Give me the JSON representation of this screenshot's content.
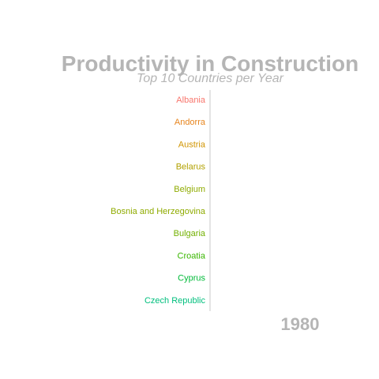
{
  "chart_data": {
    "type": "bar",
    "title": "Productivity in Construction",
    "subtitle": "Top 10 Countries per Year",
    "year": "1980",
    "categories": [
      "Albania",
      "Andorra",
      "Austria",
      "Belarus",
      "Belgium",
      "Bosnia and Herzegovina",
      "Bulgaria",
      "Croatia",
      "Cyprus",
      "Czech Republic"
    ],
    "values": [
      0,
      0,
      0,
      0,
      0,
      0,
      0,
      0,
      0,
      0
    ],
    "colors": [
      "#f8766d",
      "#e7851e",
      "#d09400",
      "#b2a100",
      "#8fab00",
      "#8fab00",
      "#72b000",
      "#39b600",
      "#00ba38",
      "#00bf7d"
    ],
    "axis_color": "#c8c8c8",
    "text_color": "#b5b5b5",
    "xlabel": "",
    "ylabel": "",
    "grid": false,
    "legend": false
  }
}
